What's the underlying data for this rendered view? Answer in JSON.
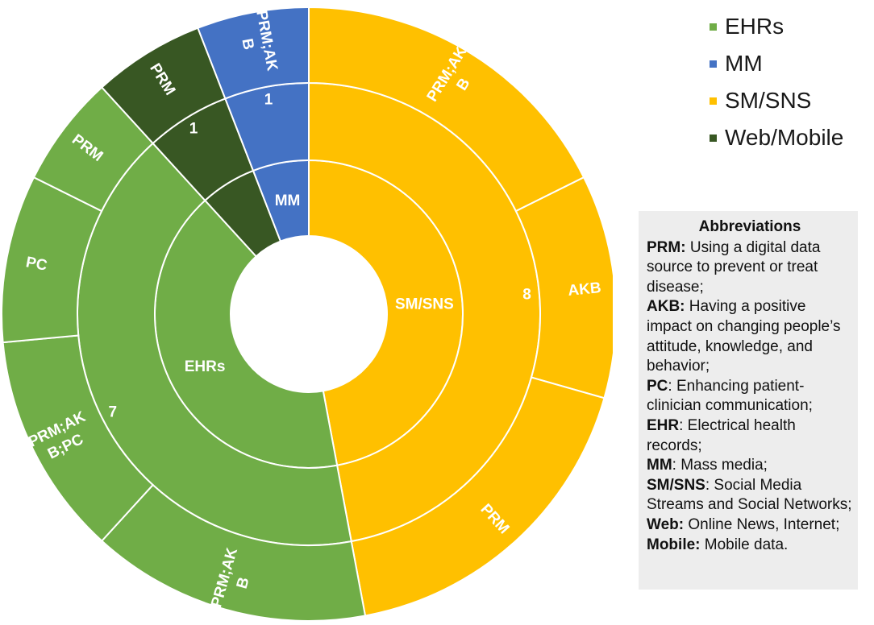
{
  "chart_data": {
    "type": "sunburst",
    "legend_position": "top-right",
    "colors": {
      "EHRs": "#70ad47",
      "MM": "#4472c4",
      "SM/SNS": "#ffc000",
      "Web/Mobile": "#385723"
    },
    "legend": [
      "EHRs",
      "MM",
      "SM/SNS",
      "Web/Mobile"
    ],
    "rings": [
      {
        "level": "inner",
        "segments": [
          {
            "label": "SM/SNS",
            "value": 8,
            "category": "SM/SNS"
          },
          {
            "label": "EHRs",
            "value": 7,
            "category": "EHRs"
          },
          {
            "label": "",
            "value": 1,
            "category": "Web/Mobile"
          },
          {
            "label": "MM",
            "value": 1,
            "category": "MM"
          }
        ]
      },
      {
        "level": "middle",
        "segments": [
          {
            "label": "8",
            "value": 8,
            "category": "SM/SNS"
          },
          {
            "label": "7",
            "value": 7,
            "category": "EHRs"
          },
          {
            "label": "1",
            "value": 1,
            "category": "Web/Mobile"
          },
          {
            "label": "1",
            "value": 1,
            "category": "MM"
          }
        ]
      },
      {
        "level": "outer",
        "segments": [
          {
            "label": "PRM;AKB",
            "lines": [
              "PRM;AK",
              "B"
            ],
            "value": 3,
            "category": "SM/SNS"
          },
          {
            "label": "AKB",
            "lines": [
              "AKB"
            ],
            "value": 2,
            "category": "SM/SNS"
          },
          {
            "label": "PRM",
            "lines": [
              "PRM"
            ],
            "value": 3,
            "category": "SM/SNS"
          },
          {
            "label": "PRM;AKB",
            "lines": [
              "PRM;AK",
              "B"
            ],
            "value": 2.5,
            "category": "EHRs"
          },
          {
            "label": "PRM;AKB;PC",
            "lines": [
              "PRM;AK",
              "B;PC"
            ],
            "value": 2,
            "category": "EHRs"
          },
          {
            "label": "PC",
            "lines": [
              "PC"
            ],
            "value": 1.5,
            "category": "EHRs"
          },
          {
            "label": "PRM",
            "lines": [
              "PRM"
            ],
            "value": 1,
            "category": "EHRs"
          },
          {
            "label": "PRM",
            "lines": [
              "PRM"
            ],
            "value": 1,
            "category": "Web/Mobile"
          },
          {
            "label": "PRM;AKB",
            "lines": [
              "PRM;AK",
              "B"
            ],
            "value": 1,
            "category": "MM"
          }
        ]
      }
    ]
  },
  "abbreviations": {
    "title": "Abbreviations",
    "entries": [
      {
        "term": "PRM:",
        "text": " Using a digital data source to prevent or treat disease;"
      },
      {
        "term": "AKB:",
        "text": " Having a positive impact on changing people’s attitude, knowledge, and behavior;"
      },
      {
        "term": "PC",
        "text": ": Enhancing patient-clinician communication;"
      },
      {
        "term": "EHR",
        "text": ": Electrical health records;"
      },
      {
        "term": "MM",
        "text": ": Mass media;"
      },
      {
        "term": "SM/SNS",
        "text": ": Social Media Streams and Social Networks;"
      },
      {
        "term": "Web:",
        "text": " Online News, Internet;"
      },
      {
        "term": "Mobile:",
        "text": " Mobile data."
      }
    ]
  }
}
